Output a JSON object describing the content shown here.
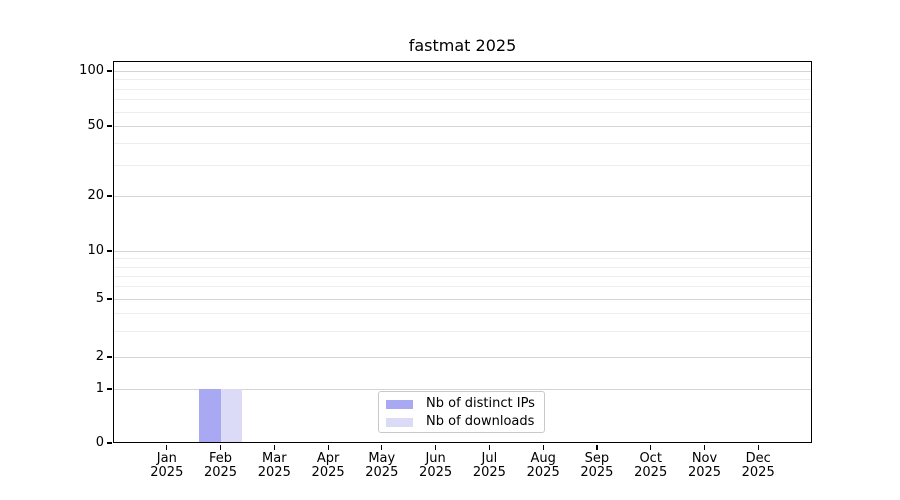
{
  "chart_data": {
    "type": "bar",
    "title": "fastmat 2025",
    "x_categories": [
      "Jan 2025",
      "Feb 2025",
      "Mar 2025",
      "Apr 2025",
      "May 2025",
      "Jun 2025",
      "Jul 2025",
      "Aug 2025",
      "Sep 2025",
      "Oct 2025",
      "Nov 2025",
      "Dec 2025"
    ],
    "series": [
      {
        "name": "Nb of distinct IPs",
        "color": "#a9a9f3",
        "values": [
          0,
          1,
          0,
          0,
          0,
          0,
          0,
          0,
          0,
          0,
          0,
          0
        ]
      },
      {
        "name": "Nb of downloads",
        "color": "#dbdbf8",
        "values": [
          0,
          1,
          0,
          0,
          0,
          0,
          0,
          0,
          0,
          0,
          0,
          0
        ]
      }
    ],
    "y_axis": {
      "scale": "symlog",
      "range": [
        0,
        100
      ],
      "ticks": [
        0,
        1,
        2,
        5,
        10,
        20,
        50,
        100
      ],
      "minor_gridlines": [
        3,
        4,
        6,
        7,
        8,
        9,
        30,
        40,
        60,
        70,
        80,
        90
      ]
    },
    "legend": {
      "position": "lower center"
    },
    "grid": true,
    "colors": {
      "axis": "#000000",
      "grid_major": "#d4d4d4",
      "grid_minor": "#ededed"
    }
  }
}
